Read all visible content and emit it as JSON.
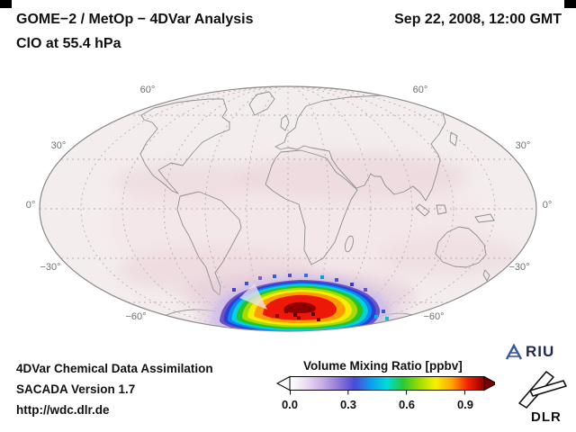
{
  "header": {
    "title": "GOME−2 / MetOp − 4DVar Analysis",
    "subtitle": "ClO at 55.4 hPa",
    "timestamp": "Sep 22, 2008, 12:00 GMT"
  },
  "map": {
    "projection": "Mollweide global map, central meridian 0°",
    "lat_labels": [
      "60°",
      "30°",
      "0°",
      "−30°",
      "−60°"
    ],
    "anomaly": {
      "location": "Antarctic polar vortex",
      "rings": [
        {
          "level_ppbv": 0.05,
          "scale": 1.3,
          "color": "#e0cde2",
          "opacity": 0.5,
          "soft": true
        },
        {
          "level_ppbv": 0.1,
          "scale": 1.13,
          "color": "#c7b7e8",
          "opacity": 0.65,
          "soft": true
        },
        {
          "level_ppbv": 0.18,
          "scale": 1.0,
          "color": "#6a52c8"
        },
        {
          "level_ppbv": 0.25,
          "scale": 0.95,
          "color": "#2b3fd6"
        },
        {
          "level_ppbv": 0.33,
          "scale": 0.9,
          "color": "#0b87f0"
        },
        {
          "level_ppbv": 0.42,
          "scale": 0.85,
          "color": "#00d2e0"
        },
        {
          "level_ppbv": 0.52,
          "scale": 0.79,
          "color": "#27c32b"
        },
        {
          "level_ppbv": 0.6,
          "scale": 0.72,
          "color": "#a4dc00"
        },
        {
          "level_ppbv": 0.7,
          "scale": 0.65,
          "color": "#f5ee00"
        },
        {
          "level_ppbv": 0.78,
          "scale": 0.57,
          "color": "#ff9d00"
        },
        {
          "level_ppbv": 0.88,
          "scale": 0.46,
          "color": "#ee1808"
        },
        {
          "level_ppbv": 1.0,
          "scale": 0.2,
          "color": "#8f0000"
        }
      ]
    }
  },
  "footer": {
    "line1": "4DVar Chemical Data Assimilation",
    "line2": "SACADA Version 1.7",
    "line3": "http://wdc.dlr.de"
  },
  "colorbar": {
    "title": "Volume Mixing Ratio [ppbv]",
    "tick_labels": [
      "0.0",
      "0.3",
      "0.6",
      "0.9"
    ],
    "range_min": 0.0,
    "range_max": 1.0,
    "gradient": [
      "#ffffff",
      "#ecdcf2",
      "#c9aee6",
      "#8f7ad8",
      "#4a4ad8",
      "#0f9cf0",
      "#00dcd8",
      "#2cc832",
      "#a0dc00",
      "#f8f000",
      "#ffa400",
      "#f52000",
      "#8f0000"
    ],
    "under_color": "#ffffff",
    "over_color": "#7a0000"
  },
  "logos": {
    "riu_label": "RIU",
    "dlr_label": "DLR"
  },
  "chart_data": {
    "type": "heatmap",
    "title": "GOME−2 / MetOp − 4DVar Analysis",
    "subtitle": "ClO at 55.4 hPa",
    "timestamp": "Sep 22, 2008, 12:00 GMT",
    "projection": "Mollweide global map, central meridian 0°",
    "variable": "ClO volume mixing ratio",
    "units": "ppbv",
    "colorbar_label": "Volume Mixing Ratio [ppbv]",
    "colorbar_ticks": [
      0.0,
      0.3,
      0.6,
      0.9
    ],
    "colorbar_range": [
      0.0,
      1.0
    ],
    "lat_gridlines_deg": [
      60,
      30,
      0,
      -30,
      -60
    ],
    "summary": [
      {
        "region": "Global background (tropics and mid-latitudes)",
        "value_ppbv": "≈ 0.0–0.1 (pale pink/white)"
      },
      {
        "region": "Antarctic polar vortex (≈ 60°S–80°S, centered near 0°–30°W)",
        "value_ppbv": "≈ 0.2–1.0, peak ≥ 0.9 in red/dark-red core"
      }
    ]
  }
}
